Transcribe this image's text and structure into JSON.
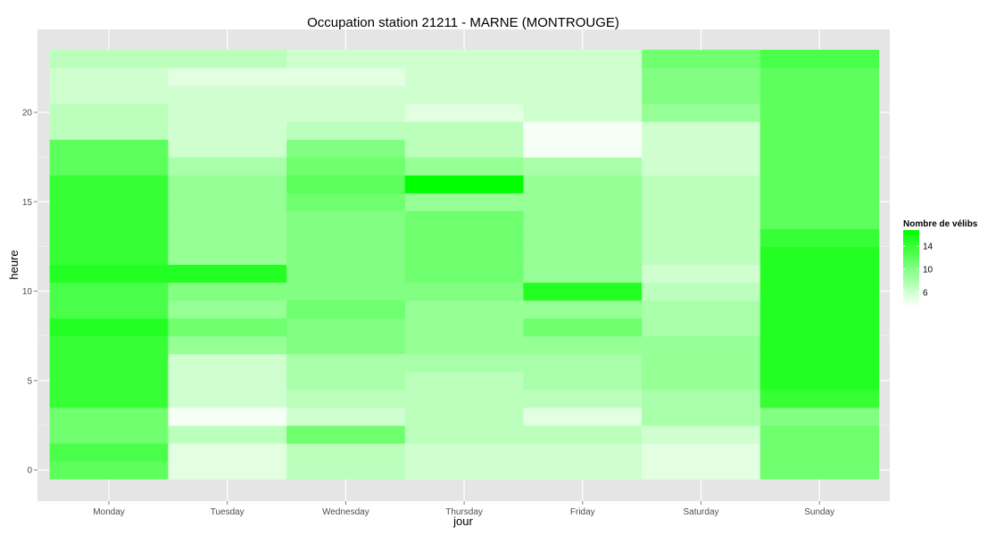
{
  "chart_data": {
    "type": "heatmap",
    "title": "Occupation station 21211 - MARNE (MONTROUGE)",
    "xlabel": "jour",
    "ylabel": "heure",
    "x_categories": [
      "Monday",
      "Tuesday",
      "Wednesday",
      "Thursday",
      "Friday",
      "Saturday",
      "Sunday"
    ],
    "y_range": [
      0,
      23
    ],
    "y_ticks": [
      0,
      5,
      10,
      15,
      20
    ],
    "colorscale": {
      "low": "#ffffff",
      "high": "#00ff00",
      "min": 3.5,
      "max": 16.8
    },
    "legend": {
      "title": "Nombre de vélibs",
      "ticks": [
        6,
        10,
        14
      ],
      "position": "right"
    },
    "grid": true,
    "values": [
      [
        12,
        5,
        7,
        6,
        6,
        5,
        11
      ],
      [
        13,
        5,
        7,
        6,
        6,
        5,
        11
      ],
      [
        11,
        7,
        11,
        7,
        7,
        6,
        11
      ],
      [
        11,
        4,
        6,
        7,
        5,
        8,
        10
      ],
      [
        14,
        6,
        7,
        7,
        7,
        8,
        14
      ],
      [
        14,
        6,
        8,
        7,
        8,
        9,
        15
      ],
      [
        14,
        6,
        8,
        8,
        8,
        9,
        15
      ],
      [
        14,
        9,
        10,
        9,
        9,
        9,
        15
      ],
      [
        15,
        11,
        10,
        9,
        11,
        8,
        15
      ],
      [
        13,
        9,
        11,
        9,
        9,
        8,
        15
      ],
      [
        13,
        10,
        10,
        10,
        15,
        7,
        15
      ],
      [
        15,
        15,
        10,
        11,
        9,
        6,
        15
      ],
      [
        14,
        9,
        10,
        11,
        9,
        7,
        15
      ],
      [
        14,
        9,
        10,
        11,
        9,
        7,
        14
      ],
      [
        14,
        9,
        10,
        11,
        9,
        7,
        12
      ],
      [
        14,
        9,
        11,
        9,
        9,
        7,
        12
      ],
      [
        14,
        9,
        12,
        17,
        9,
        7,
        12
      ],
      [
        12,
        8,
        11,
        9,
        8,
        6,
        12
      ],
      [
        12,
        6,
        10,
        7,
        4,
        6,
        12
      ],
      [
        7,
        6,
        7,
        7,
        4,
        6,
        12
      ],
      [
        7,
        6,
        6,
        5,
        6,
        9,
        12
      ],
      [
        6,
        6,
        6,
        6,
        6,
        10,
        12
      ],
      [
        6,
        5,
        5,
        6,
        6,
        10,
        12
      ],
      [
        7,
        7,
        6,
        6,
        6,
        11,
        13
      ]
    ]
  }
}
